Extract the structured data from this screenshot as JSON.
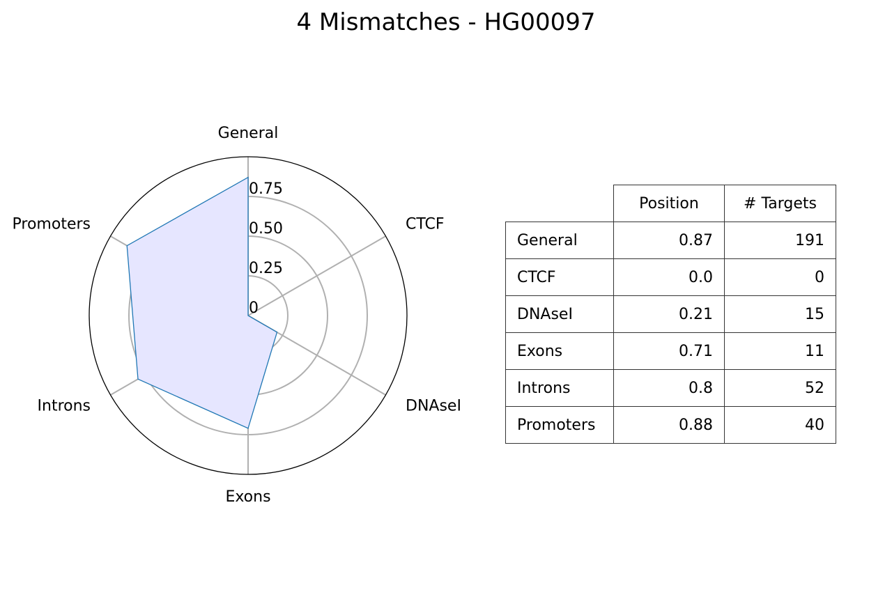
{
  "title": "4 Mismatches - HG00097",
  "chart_data": {
    "type": "radar",
    "axes": [
      "General",
      "CTCF",
      "DNAseI",
      "Exons",
      "Introns",
      "Promoters"
    ],
    "values": [
      0.87,
      0.0,
      0.21,
      0.71,
      0.8,
      0.88
    ],
    "rlim": [
      0,
      1
    ],
    "r_ticks": [
      0,
      0.25,
      0.5,
      0.75
    ],
    "r_tick_labels": [
      "0",
      "0.25",
      "0.50",
      "0.75"
    ],
    "colors": {
      "line": "#1f77b4",
      "fill": "#e6e6ff",
      "grid": "#b0b0b0",
      "frame": "#000000"
    }
  },
  "table": {
    "columns": [
      "Position",
      "# Targets"
    ],
    "rows": [
      {
        "label": "General",
        "position": "0.87",
        "targets": "191"
      },
      {
        "label": "CTCF",
        "position": "0.0",
        "targets": "0"
      },
      {
        "label": "DNAseI",
        "position": "0.21",
        "targets": "15"
      },
      {
        "label": "Exons",
        "position": "0.71",
        "targets": "11"
      },
      {
        "label": "Introns",
        "position": "0.8",
        "targets": "52"
      },
      {
        "label": "Promoters",
        "position": "0.88",
        "targets": "40"
      }
    ]
  }
}
